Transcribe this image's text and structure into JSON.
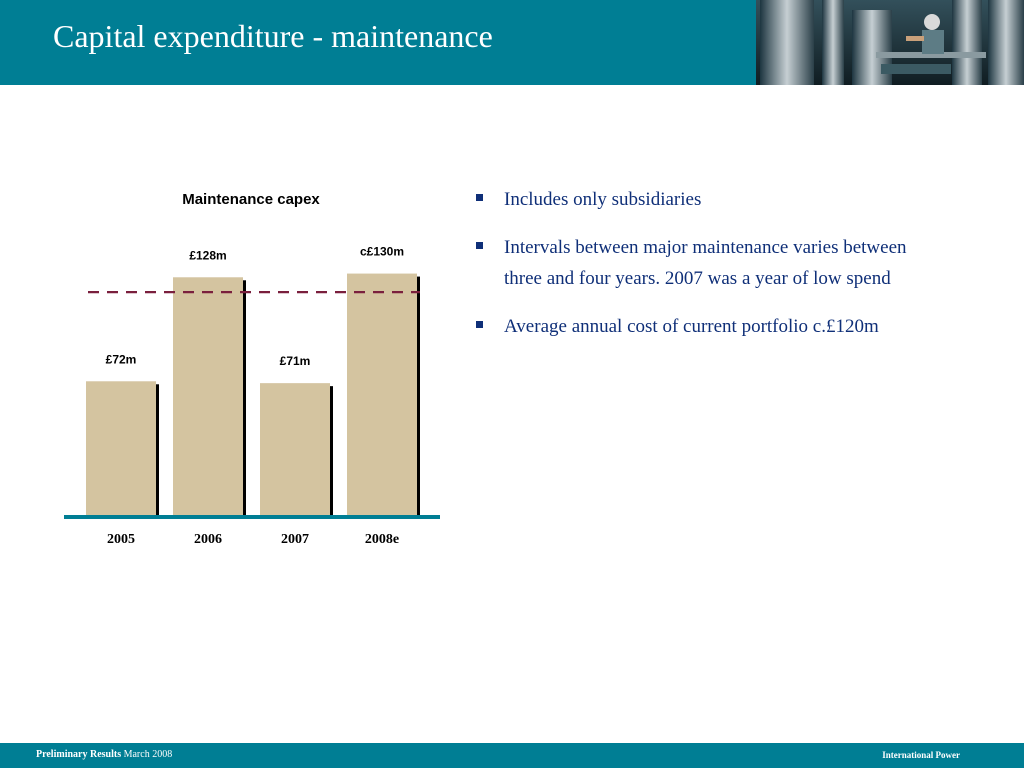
{
  "slide": {
    "title": "Capital expenditure - maintenance"
  },
  "chart_data": {
    "type": "bar",
    "title": "Maintenance capex",
    "categories": [
      "2005",
      "2006",
      "2007",
      "2008e"
    ],
    "values": [
      72,
      128,
      71,
      130
    ],
    "value_labels": [
      "£72m",
      "£128m",
      "£71m",
      "c£130m"
    ],
    "units": "£m",
    "reference_line": {
      "value": 120,
      "style": "dashed",
      "color": "#7a1f3d"
    },
    "ylim": [
      0,
      140
    ],
    "colors": {
      "bar": "#d4c4a0",
      "bar_shadow": "#000000",
      "baseline": "#007e94"
    },
    "grid": false,
    "legend": "none"
  },
  "bullets": [
    "Includes only subsidiaries",
    "Intervals between major maintenance varies between three and four years.  2007 was a year of low spend",
    "Average annual cost of current portfolio c.£120m"
  ],
  "footer": {
    "left_bold": "Preliminary Results",
    "left_rest": " March 2008",
    "right": "International Power"
  },
  "icons": {
    "header_image": "industrial-plant-worker-photo",
    "bullet": "square-bullet-icon"
  },
  "colors": {
    "header": "#007e94",
    "bullet_text": "#0f2f78"
  }
}
